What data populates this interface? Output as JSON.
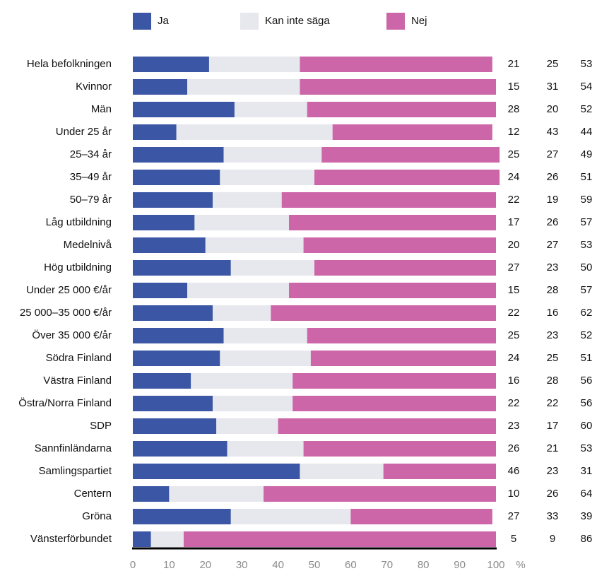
{
  "chart_data": {
    "type": "stacked-bar-horizontal",
    "categories": [
      "Hela befolkningen",
      "Kvinnor",
      "Män",
      "Under 25 år",
      "25–34 år",
      "35–49 år",
      "50–79 år",
      "Låg utbildning",
      "Medelnivå",
      "Hög utbildning",
      "Under 25 000 €/år",
      "25 000–35 000 €/år",
      "Över 35 000 €/år",
      "Södra Finland",
      "Västra Finland",
      "Östra/Norra Finland",
      "SDP",
      "Sannfinländarna",
      "Samlingspartiet",
      "Centern",
      "Gröna",
      "Vänsterförbundet"
    ],
    "series": [
      {
        "name": "Ja",
        "color": "#3b56a5",
        "values": [
          21,
          15,
          28,
          12,
          25,
          24,
          22,
          17,
          20,
          27,
          15,
          22,
          25,
          24,
          16,
          22,
          23,
          26,
          46,
          10,
          27,
          5
        ]
      },
      {
        "name": "Kan inte säga",
        "color": "#e7e7ee",
        "values": [
          25,
          31,
          20,
          43,
          27,
          26,
          19,
          26,
          27,
          23,
          28,
          16,
          23,
          25,
          28,
          22,
          17,
          21,
          23,
          26,
          33,
          9
        ]
      },
      {
        "name": "Nej",
        "color": "#cc66a8",
        "values": [
          53,
          54,
          52,
          44,
          49,
          51,
          59,
          57,
          53,
          50,
          57,
          62,
          52,
          51,
          56,
          56,
          60,
          53,
          31,
          64,
          39,
          86
        ]
      }
    ],
    "xlim": [
      0,
      100
    ],
    "xticks": [
      0,
      10,
      20,
      30,
      40,
      50,
      60,
      70,
      80,
      90,
      100
    ],
    "xlabel": "%",
    "legend": "top"
  }
}
